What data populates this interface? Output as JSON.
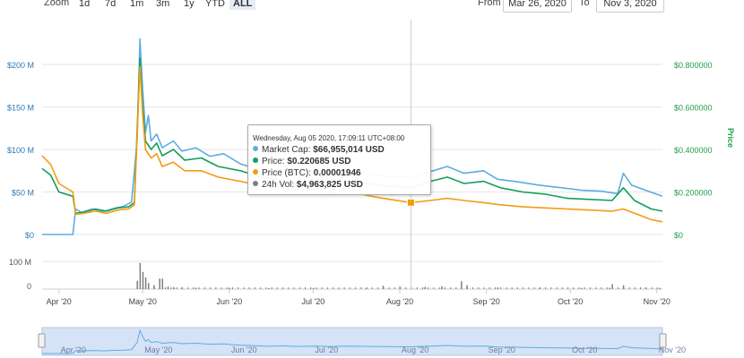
{
  "toolbar": {
    "zoom_label": "Zoom",
    "zoom_buttons": [
      "1d",
      "7d",
      "1m",
      "3m",
      "1y",
      "YTD",
      "ALL"
    ],
    "active_zoom": "ALL",
    "from_label": "From",
    "from_value": "Mar 26, 2020",
    "to_label": "To",
    "to_value": "Nov 3, 2020"
  },
  "colors": {
    "market_cap": "#5dade2",
    "price": "#139e5c",
    "price_btc": "#f39c12",
    "volume": "#7f7f7f",
    "navigator_fill": "#d6e2f5",
    "right_axis": "#1f9e48"
  },
  "tooltip": {
    "title": "Wednesday, Aug 05 2020, 17:09:11 UTC+08:00",
    "rows": [
      {
        "label": "Market Cap: ",
        "value": "$66,955,014 USD",
        "color_key": "market_cap"
      },
      {
        "label": "Price: ",
        "value": "$0.220685 USD",
        "color_key": "price"
      },
      {
        "label": "Price (BTC): ",
        "value": "0.00001946",
        "color_key": "price_btc"
      },
      {
        "label": "24h Vol: ",
        "value": "$4,963,825 USD",
        "color_key": "volume"
      }
    ]
  },
  "chart_data": {
    "type": "line",
    "x_start": "2020-03-26",
    "x_end": "2020-11-03",
    "x_ticks": [
      "Apr '20",
      "May '20",
      "Jun '20",
      "Jul '20",
      "Aug '20",
      "Sep '20",
      "Oct '20",
      "Nov '20"
    ],
    "x_tick_dates": [
      "2020-04-01",
      "2020-05-01",
      "2020-06-01",
      "2020-07-01",
      "2020-08-01",
      "2020-09-01",
      "2020-10-01",
      "2020-11-01"
    ],
    "left_axis": {
      "ticks": [
        "$0",
        "$50 M",
        "$100 M",
        "$150 M",
        "$200 M"
      ],
      "ylim": [
        0,
        200000000
      ]
    },
    "right_axis": {
      "label": "Price",
      "ticks": [
        "$0",
        "$0.200000",
        "$0.400000",
        "$0.600000",
        "$0.800000"
      ],
      "ylim": [
        0,
        0.8
      ]
    },
    "volume_axis": {
      "ticks": [
        "0",
        "100 M"
      ],
      "ylim": [
        0,
        100000000
      ]
    },
    "crosshair_date": "2020-08-05",
    "series": [
      {
        "name": "Market Cap",
        "axis": "left",
        "points": [
          [
            "2020-03-26",
            0
          ],
          [
            "2020-04-06",
            0
          ],
          [
            "2020-04-07",
            30000000
          ],
          [
            "2020-04-09",
            26000000
          ],
          [
            "2020-04-13",
            30000000
          ],
          [
            "2020-04-17",
            27000000
          ],
          [
            "2020-04-21",
            31000000
          ],
          [
            "2020-04-24",
            33000000
          ],
          [
            "2020-04-27",
            38000000
          ],
          [
            "2020-04-29",
            110000000
          ],
          [
            "2020-04-30",
            230000000
          ],
          [
            "2020-05-01",
            170000000
          ],
          [
            "2020-05-02",
            120000000
          ],
          [
            "2020-05-03",
            140000000
          ],
          [
            "2020-05-04",
            110000000
          ],
          [
            "2020-05-06",
            118000000
          ],
          [
            "2020-05-08",
            102000000
          ],
          [
            "2020-05-12",
            110000000
          ],
          [
            "2020-05-15",
            98000000
          ],
          [
            "2020-05-20",
            102000000
          ],
          [
            "2020-05-25",
            92000000
          ],
          [
            "2020-05-30",
            95000000
          ],
          [
            "2020-06-05",
            83000000
          ],
          [
            "2020-06-10",
            78000000
          ],
          [
            "2020-06-15",
            72000000
          ],
          [
            "2020-06-20",
            76000000
          ],
          [
            "2020-06-25",
            70000000
          ],
          [
            "2020-07-01",
            73000000
          ],
          [
            "2020-07-08",
            70000000
          ],
          [
            "2020-07-15",
            74000000
          ],
          [
            "2020-07-22",
            70000000
          ],
          [
            "2020-07-29",
            68000000
          ],
          [
            "2020-08-05",
            66955014
          ],
          [
            "2020-08-12",
            74000000
          ],
          [
            "2020-08-18",
            80000000
          ],
          [
            "2020-08-24",
            72000000
          ],
          [
            "2020-08-31",
            75000000
          ],
          [
            "2020-09-05",
            65000000
          ],
          [
            "2020-09-12",
            62000000
          ],
          [
            "2020-09-20",
            58000000
          ],
          [
            "2020-09-28",
            55000000
          ],
          [
            "2020-10-05",
            52000000
          ],
          [
            "2020-10-12",
            51000000
          ],
          [
            "2020-10-18",
            48000000
          ],
          [
            "2020-10-20",
            72000000
          ],
          [
            "2020-10-23",
            58000000
          ],
          [
            "2020-10-28",
            52000000
          ],
          [
            "2020-11-03",
            45000000
          ]
        ]
      },
      {
        "name": "Price",
        "axis": "right",
        "points": [
          [
            "2020-03-26",
            0.31
          ],
          [
            "2020-03-29",
            0.28
          ],
          [
            "2020-04-01",
            0.2
          ],
          [
            "2020-04-06",
            0.18
          ],
          [
            "2020-04-07",
            0.1
          ],
          [
            "2020-04-10",
            0.105
          ],
          [
            "2020-04-14",
            0.12
          ],
          [
            "2020-04-18",
            0.11
          ],
          [
            "2020-04-22",
            0.125
          ],
          [
            "2020-04-26",
            0.13
          ],
          [
            "2020-04-28",
            0.15
          ],
          [
            "2020-04-30",
            0.83
          ],
          [
            "2020-05-01",
            0.6
          ],
          [
            "2020-05-02",
            0.44
          ],
          [
            "2020-05-04",
            0.4
          ],
          [
            "2020-05-06",
            0.43
          ],
          [
            "2020-05-08",
            0.37
          ],
          [
            "2020-05-12",
            0.4
          ],
          [
            "2020-05-16",
            0.35
          ],
          [
            "2020-05-22",
            0.36
          ],
          [
            "2020-05-28",
            0.32
          ],
          [
            "2020-06-05",
            0.3
          ],
          [
            "2020-06-12",
            0.27
          ],
          [
            "2020-06-18",
            0.26
          ],
          [
            "2020-06-25",
            0.24
          ],
          [
            "2020-07-02",
            0.25
          ],
          [
            "2020-07-10",
            0.24
          ],
          [
            "2020-07-18",
            0.245
          ],
          [
            "2020-07-26",
            0.23
          ],
          [
            "2020-08-05",
            0.220685
          ],
          [
            "2020-08-12",
            0.25
          ],
          [
            "2020-08-18",
            0.27
          ],
          [
            "2020-08-24",
            0.24
          ],
          [
            "2020-08-31",
            0.25
          ],
          [
            "2020-09-06",
            0.22
          ],
          [
            "2020-09-14",
            0.2
          ],
          [
            "2020-09-22",
            0.19
          ],
          [
            "2020-09-30",
            0.17
          ],
          [
            "2020-10-08",
            0.165
          ],
          [
            "2020-10-16",
            0.16
          ],
          [
            "2020-10-20",
            0.22
          ],
          [
            "2020-10-24",
            0.16
          ],
          [
            "2020-10-30",
            0.12
          ],
          [
            "2020-11-03",
            0.11
          ]
        ]
      },
      {
        "name": "Price (BTC)",
        "axis": "right",
        "points": [
          [
            "2020-03-26",
            0.37
          ],
          [
            "2020-03-29",
            0.33
          ],
          [
            "2020-04-01",
            0.24
          ],
          [
            "2020-04-06",
            0.2
          ],
          [
            "2020-04-07",
            0.095
          ],
          [
            "2020-04-10",
            0.1
          ],
          [
            "2020-04-14",
            0.11
          ],
          [
            "2020-04-18",
            0.1
          ],
          [
            "2020-04-22",
            0.115
          ],
          [
            "2020-04-26",
            0.12
          ],
          [
            "2020-04-28",
            0.14
          ],
          [
            "2020-04-30",
            0.79
          ],
          [
            "2020-05-01",
            0.56
          ],
          [
            "2020-05-02",
            0.4
          ],
          [
            "2020-05-04",
            0.36
          ],
          [
            "2020-05-06",
            0.38
          ],
          [
            "2020-05-08",
            0.32
          ],
          [
            "2020-05-12",
            0.34
          ],
          [
            "2020-05-16",
            0.3
          ],
          [
            "2020-05-22",
            0.3
          ],
          [
            "2020-05-28",
            0.27
          ],
          [
            "2020-06-05",
            0.25
          ],
          [
            "2020-06-12",
            0.23
          ],
          [
            "2020-06-18",
            0.22
          ],
          [
            "2020-06-25",
            0.21
          ],
          [
            "2020-07-02",
            0.21
          ],
          [
            "2020-07-10",
            0.19
          ],
          [
            "2020-07-18",
            0.19
          ],
          [
            "2020-07-26",
            0.17
          ],
          [
            "2020-08-05",
            0.15
          ],
          [
            "2020-08-12",
            0.16
          ],
          [
            "2020-08-18",
            0.17
          ],
          [
            "2020-08-24",
            0.16
          ],
          [
            "2020-08-31",
            0.15
          ],
          [
            "2020-09-06",
            0.14
          ],
          [
            "2020-09-14",
            0.13
          ],
          [
            "2020-09-22",
            0.125
          ],
          [
            "2020-09-30",
            0.12
          ],
          [
            "2020-10-08",
            0.115
          ],
          [
            "2020-10-16",
            0.11
          ],
          [
            "2020-10-20",
            0.12
          ],
          [
            "2020-10-24",
            0.1
          ],
          [
            "2020-10-30",
            0.07
          ],
          [
            "2020-11-03",
            0.06
          ]
        ]
      }
    ],
    "volume": {
      "name": "24h Vol",
      "axis": "volume",
      "points": [
        [
          "2020-04-29",
          30000000
        ],
        [
          "2020-04-30",
          95000000
        ],
        [
          "2020-05-01",
          62000000
        ],
        [
          "2020-05-02",
          42000000
        ],
        [
          "2020-05-03",
          22000000
        ],
        [
          "2020-05-05",
          14000000
        ],
        [
          "2020-05-07",
          38000000
        ],
        [
          "2020-05-08",
          38000000
        ],
        [
          "2020-05-10",
          9000000
        ],
        [
          "2020-05-12",
          7000000
        ],
        [
          "2020-05-15",
          6000000
        ],
        [
          "2020-05-20",
          5000000
        ],
        [
          "2020-06-01",
          5000000
        ],
        [
          "2020-06-15",
          4000000
        ],
        [
          "2020-07-01",
          4000000
        ],
        [
          "2020-07-20",
          5000000
        ],
        [
          "2020-07-26",
          12000000
        ],
        [
          "2020-08-01",
          9000000
        ],
        [
          "2020-08-05",
          4963825
        ],
        [
          "2020-08-10",
          8000000
        ],
        [
          "2020-08-16",
          10000000
        ],
        [
          "2020-08-23",
          28000000
        ],
        [
          "2020-08-25",
          14000000
        ],
        [
          "2020-09-05",
          6000000
        ],
        [
          "2020-09-20",
          5000000
        ],
        [
          "2020-10-05",
          4000000
        ],
        [
          "2020-10-15",
          5000000
        ],
        [
          "2020-10-16",
          18000000
        ],
        [
          "2020-10-20",
          14000000
        ],
        [
          "2020-10-28",
          5000000
        ],
        [
          "2020-11-02",
          4000000
        ]
      ]
    }
  }
}
